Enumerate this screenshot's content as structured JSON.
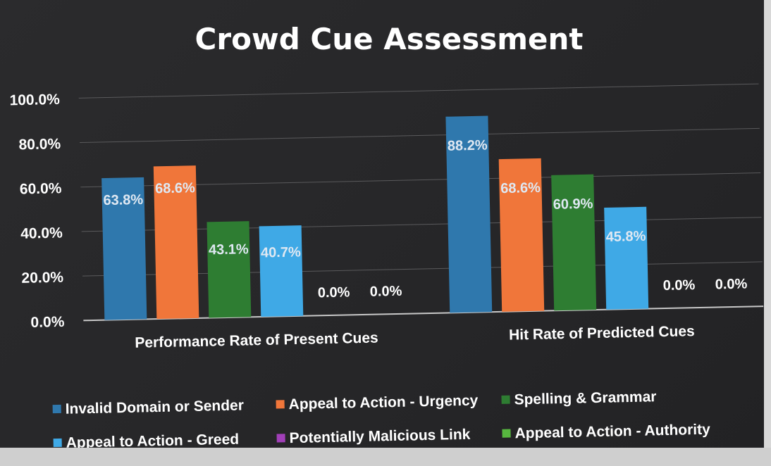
{
  "chart_data": {
    "type": "bar",
    "title": "Crowd Cue Assessment",
    "categories": [
      "Performance Rate of Present Cues",
      "Hit Rate of Predicted Cues"
    ],
    "ylim": [
      0,
      100
    ],
    "y_ticks": [
      "100.0%",
      "80.0%",
      "60.0%",
      "40.0%",
      "20.0%",
      "0.0%"
    ],
    "grid": true,
    "legend_position": "bottom",
    "series": [
      {
        "name": "Invalid Domain or Sender",
        "values": [
          63.8,
          88.2
        ],
        "labels": [
          "63.8%",
          "88.2%"
        ],
        "color": "#2f78ad"
      },
      {
        "name": "Appeal to Action - Urgency",
        "values": [
          68.6,
          68.6
        ],
        "labels": [
          "68.6%",
          "68.6%"
        ],
        "color": "#f0763a"
      },
      {
        "name": "Spelling & Grammar",
        "values": [
          43.1,
          60.9
        ],
        "labels": [
          "43.1%",
          "60.9%"
        ],
        "color": "#2e7d32"
      },
      {
        "name": "Appeal to Action - Greed",
        "values": [
          40.7,
          45.8
        ],
        "labels": [
          "40.7%",
          "45.8%"
        ],
        "color": "#3fa9e6"
      },
      {
        "name": "Potentially Malicious Link",
        "values": [
          0,
          0
        ],
        "labels": [
          "0.0%",
          "0.0%"
        ],
        "color": "#a13fb8"
      },
      {
        "name": "Appeal to Action - Authority",
        "values": [
          0,
          0
        ],
        "labels": [
          "0.0%",
          "0.0%"
        ],
        "color": "#57b83f"
      }
    ]
  }
}
